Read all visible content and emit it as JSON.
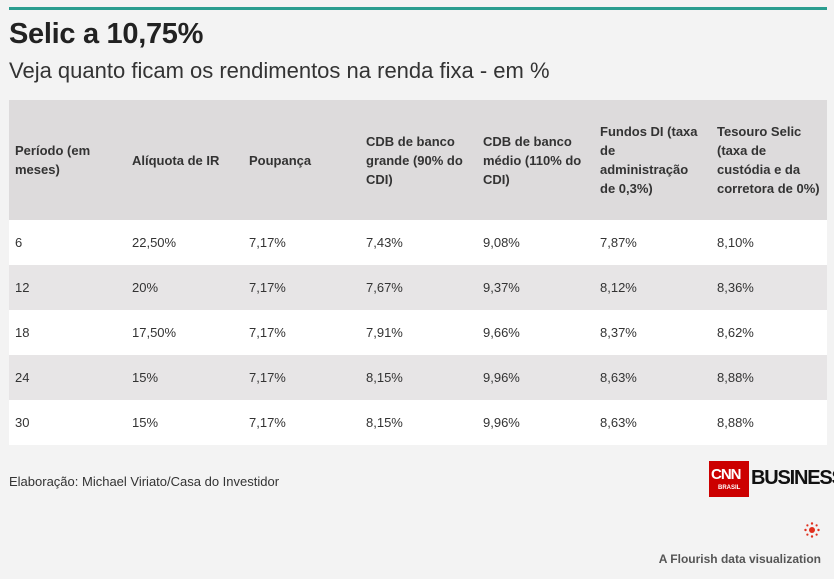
{
  "header": {
    "title": "Selic a 10,75%",
    "subtitle": "Veja quanto ficam os rendimentos na renda fixa - em %"
  },
  "table": {
    "columns": [
      "Período (em meses)",
      "Alíquota de IR",
      "Poupança",
      "CDB de banco grande (90% do CDI)",
      "CDB de banco médio (110% do CDI)",
      "Fundos DI (taxa de administração de 0,3%)",
      "Tesouro Selic (taxa de custódia e da corretora de 0%)"
    ],
    "rows": [
      [
        "6",
        "22,50%",
        "7,17%",
        "7,43%",
        "9,08%",
        "7,87%",
        "8,10%"
      ],
      [
        "12",
        "20%",
        "7,17%",
        "7,67%",
        "9,37%",
        "8,12%",
        "8,36%"
      ],
      [
        "18",
        "17,50%",
        "7,17%",
        "7,91%",
        "9,66%",
        "8,37%",
        "8,62%"
      ],
      [
        "24",
        "15%",
        "7,17%",
        "8,15%",
        "9,96%",
        "8,63%",
        "8,88%"
      ],
      [
        "30",
        "15%",
        "7,17%",
        "8,15%",
        "9,96%",
        "8,63%",
        "8,88%"
      ]
    ]
  },
  "chart_data": {
    "type": "table",
    "title": "Selic a 10,75%",
    "subtitle": "Veja quanto ficam os rendimentos na renda fixa - em %",
    "columns": [
      "Período (em meses)",
      "Alíquota de IR",
      "Poupança",
      "CDB de banco grande (90% do CDI)",
      "CDB de banco médio (110% do CDI)",
      "Fundos DI (taxa de administração de 0,3%)",
      "Tesouro Selic (taxa de custódia e da corretora de 0%)"
    ],
    "rows": [
      [
        6,
        22.5,
        7.17,
        7.43,
        9.08,
        7.87,
        8.1
      ],
      [
        12,
        20,
        7.17,
        7.67,
        9.37,
        8.12,
        8.36
      ],
      [
        18,
        17.5,
        7.17,
        7.91,
        9.66,
        8.37,
        8.62
      ],
      [
        24,
        15,
        7.17,
        8.15,
        9.96,
        8.63,
        8.88
      ],
      [
        30,
        15,
        7.17,
        8.15,
        9.96,
        8.63,
        8.88
      ]
    ]
  },
  "footer": {
    "credit": "Elaboração: Michael Viriato/Casa do Investidor",
    "logo_cnn": "CNN",
    "logo_brasil": "BRASIL",
    "logo_business": "BUSINESS",
    "flourish_credit": "A Flourish data visualization"
  },
  "colors": {
    "accent_rule": "#2a9d8f",
    "header_bg": "#dddbdc",
    "row_alt_bg": "#e7e5e6",
    "cnn_red": "#cc0000",
    "flourish_mark": "#e0301e"
  },
  "icons": {
    "flourish": "flourish-logo-icon"
  }
}
